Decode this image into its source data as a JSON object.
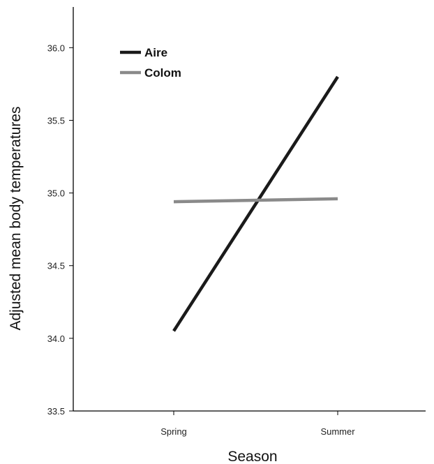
{
  "chart_data": {
    "type": "line",
    "x": [
      "Spring",
      "Summer"
    ],
    "series": [
      {
        "name": "Aire",
        "values": [
          34.05,
          35.8
        ],
        "color": "#1a1a1a"
      },
      {
        "name": "Colom",
        "values": [
          34.94,
          34.96
        ],
        "color": "#8a8a8a"
      }
    ],
    "xlabel": "Season",
    "ylabel": "Adjusted mean body temperatures",
    "ylim": [
      33.5,
      36.28
    ],
    "yticks": [
      "33.5",
      "34.0",
      "34.5",
      "35.0",
      "35.5",
      "36.0"
    ],
    "grid": false,
    "legend_position": "top-left"
  }
}
